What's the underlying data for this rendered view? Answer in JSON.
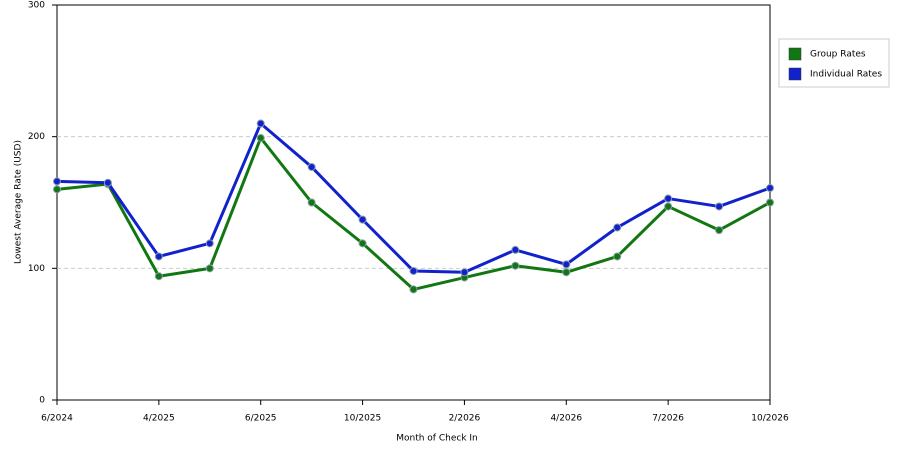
{
  "chart_data": {
    "type": "line",
    "x_label": "Month of Check In",
    "y_label": "Lowest Average Rate (USD)",
    "categories": [
      "6/2024",
      null,
      "4/2025",
      null,
      "6/2025",
      null,
      "10/2025",
      null,
      "2/2026",
      null,
      "4/2026",
      null,
      "7/2026",
      null,
      "10/2026"
    ],
    "series": [
      {
        "name": "Group Rates",
        "color": "#117711",
        "values": [
          160,
          164,
          94,
          100,
          199,
          150,
          119,
          84,
          93,
          102,
          97,
          109,
          147,
          129,
          150
        ]
      },
      {
        "name": "Individual Rates",
        "color": "#1122cc",
        "values": [
          166,
          165,
          109,
          119,
          210,
          177,
          137,
          98,
          97,
          114,
          103,
          131,
          153,
          147,
          161
        ]
      }
    ],
    "ylim": [
      0,
      300
    ],
    "yticks": [
      0,
      100,
      200,
      300
    ],
    "grid": true,
    "legend": "right"
  }
}
